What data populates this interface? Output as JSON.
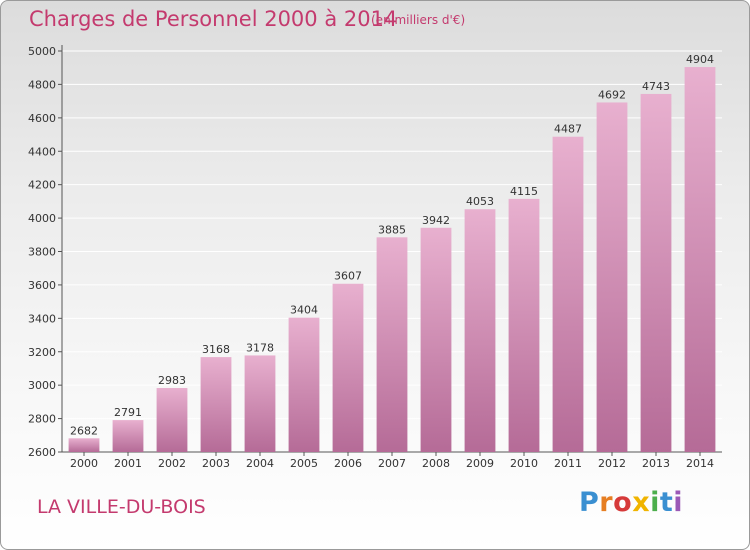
{
  "header": {
    "title": "Charges de Personnel 2000 à 2014",
    "subtitle": "(en milliers d'€)"
  },
  "footer": {
    "commune": "LA VILLE-DU-BOIS"
  },
  "logo": {
    "letters": [
      "P",
      "r",
      "o",
      "x",
      "i",
      "t",
      "i"
    ],
    "text": "Proxiti",
    "colors": [
      "#3a8fd1",
      "#e67e22",
      "#d63a3a",
      "#f0b400",
      "#4cae4c",
      "#3a8fd1",
      "#9b59b6"
    ]
  },
  "colors": {
    "accent": "#c43a6e",
    "bar_top": "#e8b0cf",
    "bar_bottom": "#b56b97",
    "grid": "#ffffff"
  },
  "chart_data": {
    "type": "bar",
    "title": "Charges de Personnel 2000 à 2014",
    "subtitle": "(en milliers d'€)",
    "xlabel": "",
    "ylabel": "",
    "categories": [
      "2000",
      "2001",
      "2002",
      "2003",
      "2004",
      "2005",
      "2006",
      "2007",
      "2008",
      "2009",
      "2010",
      "2011",
      "2012",
      "2013",
      "2014"
    ],
    "values": [
      2682,
      2791,
      2983,
      3168,
      3178,
      3404,
      3607,
      3885,
      3942,
      4053,
      4115,
      4487,
      4692,
      4743,
      4904
    ],
    "ylim": [
      2600,
      5000
    ],
    "yticks": [
      2600,
      2800,
      3000,
      3200,
      3400,
      3600,
      3800,
      4000,
      4200,
      4400,
      4600,
      4800,
      5000
    ],
    "grid": true,
    "legend": "none"
  }
}
